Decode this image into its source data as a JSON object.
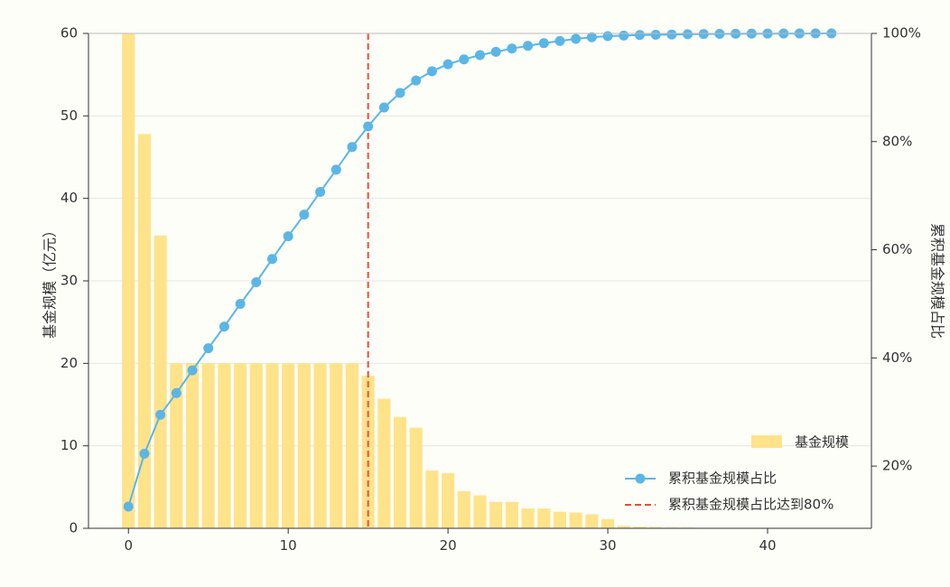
{
  "chart_data": {
    "type": "bar",
    "x": [
      0,
      1,
      2,
      3,
      4,
      5,
      6,
      7,
      8,
      9,
      10,
      11,
      12,
      13,
      14,
      15,
      16,
      17,
      18,
      19,
      20,
      21,
      22,
      23,
      24,
      25,
      26,
      27,
      28,
      29,
      30,
      31,
      32,
      33,
      34,
      35,
      36,
      37,
      38,
      39,
      40,
      41,
      42,
      43,
      44
    ],
    "series": [
      {
        "name": "基金规模",
        "kind": "bar",
        "axis": "left",
        "color": "#ffe38a",
        "values": [
          60,
          47.8,
          35.5,
          20,
          20,
          20,
          20,
          20,
          20,
          20,
          20,
          20,
          20,
          20,
          20,
          18.5,
          15.7,
          13.5,
          12.2,
          7,
          6.7,
          4.5,
          4,
          3.2,
          3.2,
          2.4,
          2.4,
          2,
          1.9,
          1.7,
          1.1,
          0.3,
          0.2,
          0.15,
          0.1,
          0.1,
          0,
          0,
          0,
          0,
          0,
          0,
          0,
          0,
          0
        ]
      },
      {
        "name": "累积基金规模占比",
        "kind": "line",
        "axis": "right",
        "color": "#5bb6e6",
        "values": [
          12.5,
          22.3,
          29.5,
          33.5,
          37.7,
          41.8,
          45.8,
          50,
          54,
          58.3,
          62.5,
          66.5,
          70.7,
          74.8,
          79,
          82.8,
          86.3,
          89,
          91.3,
          93,
          94.3,
          95.2,
          96,
          96.6,
          97.2,
          97.7,
          98.2,
          98.6,
          99,
          99.3,
          99.5,
          99.6,
          99.7,
          99.75,
          99.8,
          99.85,
          99.9,
          99.92,
          99.94,
          99.96,
          99.97,
          99.98,
          99.99,
          100,
          100
        ]
      }
    ],
    "threshold": {
      "name": "累积基金规模占比达到80%",
      "x": 15,
      "color": "#f04a3a"
    },
    "xlim": [
      -2.5,
      46.5
    ],
    "ylim_left": [
      0,
      60
    ],
    "ylim_right": [
      8.5,
      100
    ],
    "xticks": [
      0,
      10,
      20,
      30,
      40
    ],
    "yticks_left": [
      0,
      10,
      20,
      30,
      40,
      50,
      60
    ],
    "yticks_right": [
      20,
      40,
      60,
      80,
      100
    ],
    "yticks_right_labels": [
      "20%",
      "40%",
      "60%",
      "80%",
      "100%"
    ],
    "ylabel_left": "基金规模（亿元）",
    "ylabel_right": "累积基金规模占比",
    "grid": "horizontal",
    "legend_placement": "bottom-right"
  }
}
